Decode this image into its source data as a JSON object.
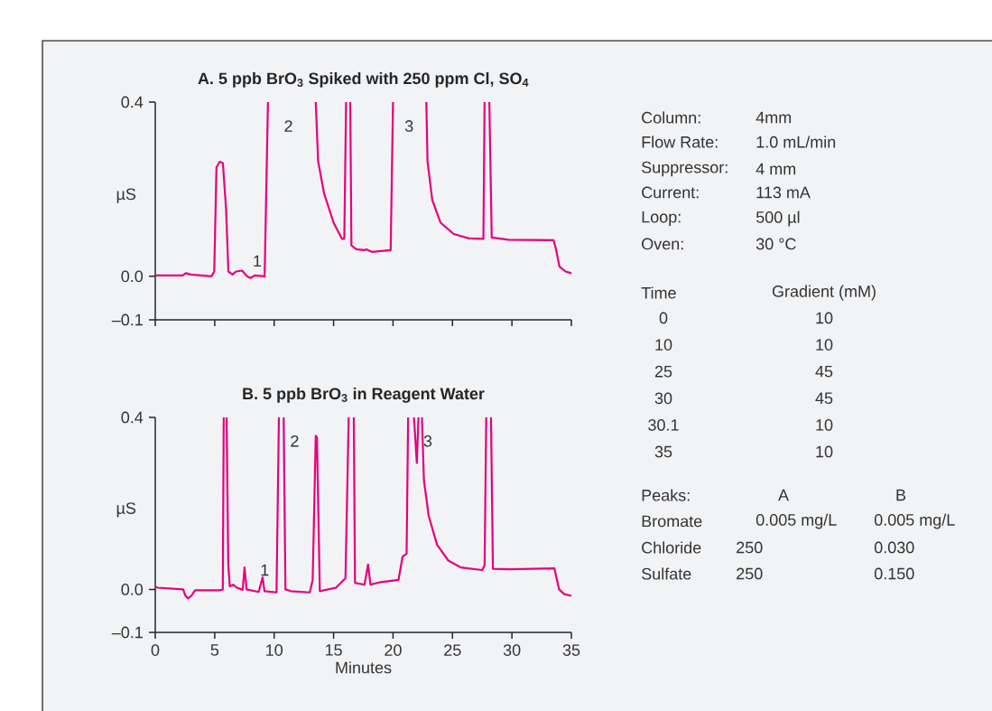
{
  "chart_data": [
    {
      "type": "line",
      "title": "A. 5 ppb BrO$_{3}$ Spiked with 250 ppm Cl, SO$_{4}$",
      "ylabel": "µS",
      "color": "#e6007e",
      "marker": "none",
      "line_style": "solid",
      "tick_labels": "y",
      "xlim": [
        0,
        35
      ],
      "ylim": [
        -0.1,
        0.4
      ],
      "xticks": [
        {
          "value": 0,
          "label": null
        },
        {
          "value": 5,
          "label": null
        },
        {
          "value": 10,
          "label": null
        },
        {
          "value": 15,
          "label": null
        },
        {
          "value": 20,
          "label": null
        },
        {
          "value": 25,
          "label": null
        },
        {
          "value": 30,
          "label": null
        },
        {
          "value": 35,
          "label": null
        }
      ],
      "yticks": [
        {
          "value": -0.1,
          "label": "–0.1"
        },
        {
          "value": 0,
          "label": "0.0"
        },
        {
          "value": 0.4,
          "label": "0.4"
        }
      ],
      "x": [
        0,
        2.3,
        2.57,
        2.98,
        4.74,
        4.96,
        5.15,
        5.42,
        5.69,
        5.96,
        6.15,
        6.5,
        6.8,
        7.3,
        7.72,
        8.0,
        8.4,
        9.2,
        9.48,
        11.5,
        13.5,
        13.7,
        14.2,
        15.0,
        15.7,
        15.9,
        16.05,
        16.2,
        16.4,
        16.5,
        16.9,
        17.6,
        17.75,
        18.2,
        19.8,
        20.0,
        21.4,
        22.8,
        22.9,
        23.3,
        24.0,
        25.1,
        26.4,
        27.6,
        27.7,
        27.9,
        28.1,
        28.3,
        29.7,
        33.5,
        33.7,
        34.0,
        34.5,
        35.0
      ],
      "values": [
        0.002,
        0.002,
        0.007,
        0.004,
        0.0,
        0.011,
        0.25,
        0.263,
        0.26,
        0.153,
        0.011,
        0.004,
        0.011,
        0.013,
        0.0,
        -0.004,
        0.002,
        0.0,
        0.4,
        null,
        0.4,
        0.264,
        0.19,
        0.123,
        0.086,
        0.086,
        0.4,
        null,
        0.4,
        0.071,
        0.062,
        0.06,
        0.062,
        0.056,
        0.06,
        0.4,
        null,
        0.4,
        0.264,
        0.175,
        0.123,
        0.097,
        0.087,
        0.086,
        0.4,
        null,
        0.4,
        0.089,
        0.084,
        0.083,
        0.063,
        0.022,
        0.011,
        0.007
      ],
      "annotations": [
        "1",
        "2",
        "3"
      ]
    },
    {
      "type": "line",
      "title": "B. 5 ppb BrO$_{3}$ in Reagent Water",
      "ylabel": "µS",
      "xlabel": "Minutes",
      "color": "#e6007e",
      "marker": "none",
      "line_style": "solid",
      "xlim": [
        0,
        35
      ],
      "ylim": [
        -0.1,
        0.4
      ],
      "xticks": [
        0,
        5,
        10,
        15,
        20,
        25,
        30,
        35
      ],
      "yticks": [
        {
          "value": -0.1,
          "label": "–0.1"
        },
        {
          "value": 0,
          "label": "0.0"
        },
        {
          "value": 0.4,
          "label": "0.4"
        }
      ],
      "x": [
        0,
        0.19,
        2.35,
        2.54,
        2.76,
        3.03,
        3.35,
        5.46,
        5.68,
        5.76,
        5.88,
        6.0,
        6.14,
        6.27,
        6.54,
        6.86,
        7.35,
        7.51,
        7.68,
        8.7,
        9.03,
        9.19,
        10.2,
        10.4,
        10.6,
        10.8,
        10.95,
        11.4,
        13.0,
        13.24,
        13.5,
        13.6,
        13.84,
        15.2,
        16.0,
        16.27,
        16.5,
        16.7,
        16.8,
        17.6,
        17.9,
        18.1,
        18.97,
        20.46,
        20.8,
        21.14,
        21.27,
        21.5,
        21.76,
        22.0,
        22.14,
        22.3,
        22.43,
        22.6,
        23.0,
        23.7,
        24.65,
        25.7,
        27.5,
        27.7,
        27.84,
        28.0,
        28.24,
        28.4,
        29.8,
        33.57,
        33.97,
        34.4,
        35.0
      ],
      "values": [
        0.006,
        0.004,
        0.0,
        -0.015,
        -0.021,
        -0.015,
        -0.002,
        -0.002,
        0.0,
        0.4,
        null,
        0.4,
        0.059,
        0.007,
        0.011,
        0.004,
        -0.001,
        0.051,
        0.0,
        -0.006,
        0.028,
        -0.004,
        -0.007,
        0.4,
        null,
        0.4,
        0.0,
        -0.004,
        -0.007,
        0.022,
        0.357,
        0.353,
        -0.004,
        0.004,
        0.026,
        0.4,
        null,
        0.4,
        0.015,
        0.011,
        0.058,
        0.011,
        0.017,
        0.022,
        0.076,
        0.083,
        0.4,
        null,
        0.4,
        0.294,
        0.4,
        null,
        0.4,
        0.253,
        0.171,
        0.104,
        0.067,
        0.051,
        0.045,
        0.056,
        0.4,
        null,
        0.4,
        0.048,
        0.047,
        0.049,
        0.0,
        -0.011,
        -0.015
      ],
      "annotations": [
        "1",
        "2",
        "3"
      ]
    },
    {
      "type": "other",
      "annotations": [
        "Column:",
        "4mm",
        "Flow Rate:",
        "1.0 mL/min",
        "Suppressor:",
        "4 mm",
        "Current:",
        "113 mA",
        "Loop:",
        "500 µl",
        "Oven:",
        "30 °C",
        "Time",
        "Gradient (mM)",
        "0",
        "10",
        "10",
        "10",
        "25",
        "45",
        "30",
        "45",
        "30.1",
        "10",
        "35",
        "10",
        "Peaks:",
        "A",
        "B",
        "Bromate",
        "0.005 mg/L",
        "0.005 mg/L",
        "Chloride",
        "250",
        "0.030",
        "Sulfate",
        "250",
        "0.150"
      ]
    }
  ]
}
